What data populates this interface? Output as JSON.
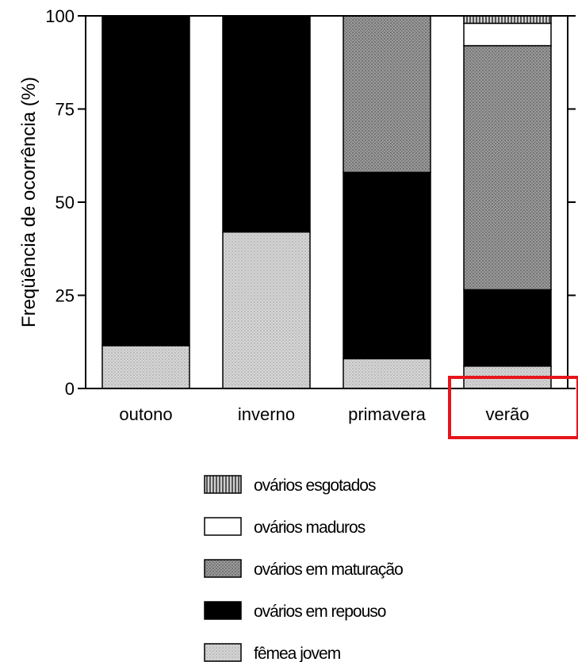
{
  "chart_data": {
    "type": "bar",
    "stacked": true,
    "ylabel": "Freqüência de ocorrência (%)",
    "ylim": [
      0,
      100
    ],
    "yticks": [
      "0",
      "25",
      "50",
      "75",
      "100"
    ],
    "categories": [
      "outono",
      "inverno",
      "primavera",
      "verão"
    ],
    "series": [
      {
        "name": "fêmea jovem",
        "values": [
          11.5,
          42,
          8,
          6
        ],
        "color": "#cfcfcf",
        "pattern": "light-dots"
      },
      {
        "name": "ovários em repouso",
        "values": [
          88.5,
          58,
          50,
          20.5
        ],
        "color": "#000000",
        "pattern": "solid"
      },
      {
        "name": "ovários em maturação",
        "values": [
          0,
          0,
          42,
          65.5
        ],
        "color": "#8f8f8f",
        "pattern": "dark-dots"
      },
      {
        "name": "ovários maduros",
        "values": [
          0,
          0,
          0,
          6
        ],
        "color": "#ffffff",
        "pattern": "solid"
      },
      {
        "name": "ovários esgotados",
        "values": [
          0,
          0,
          0,
          2
        ],
        "color": "#7a7a7a",
        "pattern": "vertical-stripes"
      }
    ],
    "legend_order": [
      "ovários esgotados",
      "ovários maduros",
      "ovários em maturação",
      "ovários em repouso",
      "fêmea jovem"
    ],
    "legend_position": "bottom",
    "grid": false
  },
  "highlight": {
    "color": "#e8141b",
    "target": "verão"
  }
}
